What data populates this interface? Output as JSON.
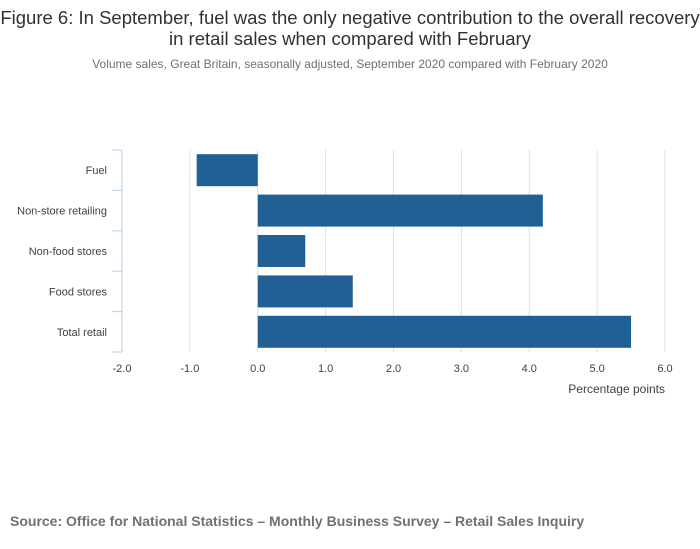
{
  "title": "Figure 6: In September, fuel was the only negative contribution to the overall recovery in retail sales when compared with February",
  "subtitle": "Volume sales, Great Britain, seasonally adjusted, September 2020 compared with February 2020",
  "source": "Source: Office for National Statistics – Monthly Business Survey – Retail Sales Inquiry",
  "colors": {
    "bar": "#206095",
    "grid": "#e0e0e0",
    "axis": "#b8cce4",
    "label": "#414042"
  },
  "chart_data": {
    "type": "bar",
    "orientation": "horizontal",
    "categories": [
      "Fuel",
      "Non-store retailing",
      "Non-food stores",
      "Food stores",
      "Total retail"
    ],
    "values": [
      -0.9,
      4.2,
      0.7,
      1.4,
      5.5
    ],
    "xlabel": "Percentage points",
    "ylabel": "",
    "xlim": [
      -2.0,
      6.0
    ],
    "xticks": [
      "-2.0",
      "-1.0",
      "0.0",
      "1.0",
      "2.0",
      "3.0",
      "4.0",
      "5.0",
      "6.0"
    ],
    "grid": true,
    "legend": "none"
  }
}
